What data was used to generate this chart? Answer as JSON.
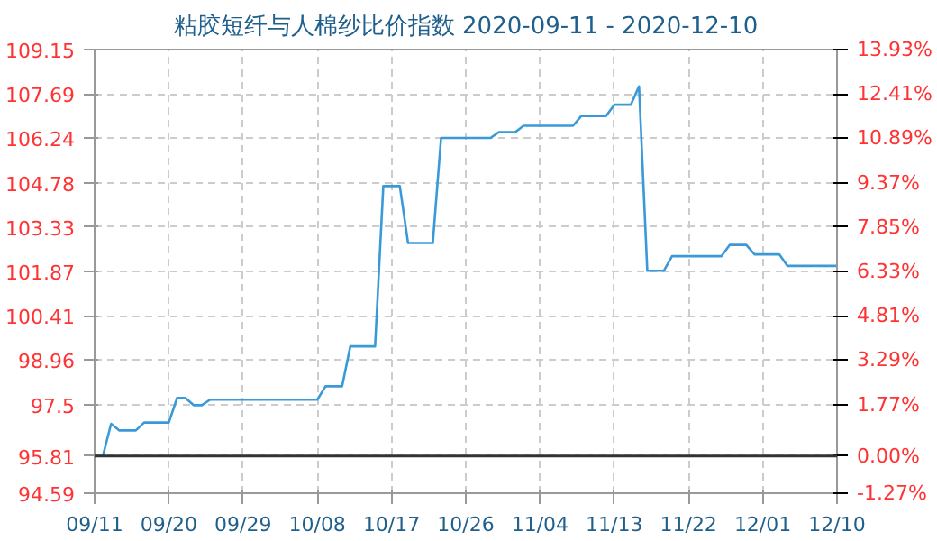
{
  "chart_data": {
    "type": "line",
    "title": "粘胶短纤与人棉纱比价指数 2020-09-11 - 2020-12-10",
    "x": [
      "2020-09-11",
      "2020-09-12",
      "2020-09-13",
      "2020-09-14",
      "2020-09-16",
      "2020-09-17",
      "2020-09-20",
      "2020-09-21",
      "2020-09-22",
      "2020-09-23",
      "2020-09-24",
      "2020-09-25",
      "2020-10-08",
      "2020-10-09",
      "2020-10-11",
      "2020-10-12",
      "2020-10-15",
      "2020-10-16",
      "2020-10-18",
      "2020-10-19",
      "2020-10-22",
      "2020-10-23",
      "2020-10-29",
      "2020-10-30",
      "2020-11-01",
      "2020-11-02",
      "2020-11-08",
      "2020-11-09",
      "2020-11-12",
      "2020-11-13",
      "2020-11-15",
      "2020-11-16",
      "2020-11-17",
      "2020-11-19",
      "2020-11-20",
      "2020-11-26",
      "2020-11-27",
      "2020-11-29",
      "2020-11-30",
      "2020-12-03",
      "2020-12-04",
      "2020-12-10"
    ],
    "series": [
      {
        "color": "#3a9ad9",
        "values": [
          95.81,
          95.81,
          96.87,
          96.65,
          96.65,
          96.91,
          96.91,
          97.72,
          97.72,
          97.48,
          97.48,
          97.66,
          97.66,
          98.1,
          98.1,
          99.41,
          99.41,
          104.67,
          104.67,
          102.8,
          102.8,
          106.25,
          106.25,
          106.44,
          106.44,
          106.65,
          106.65,
          106.97,
          106.97,
          107.34,
          107.34,
          107.94,
          101.89,
          101.89,
          102.37,
          102.37,
          102.74,
          102.74,
          102.43,
          102.43,
          102.05,
          102.05
        ]
      }
    ],
    "xlim": [
      "2020-09-11",
      "2020-12-10"
    ],
    "xticks": [
      {
        "value": "2020-09-11",
        "label": "09/11"
      },
      {
        "value": "2020-09-20",
        "label": "09/20"
      },
      {
        "value": "2020-09-29",
        "label": "09/29"
      },
      {
        "value": "2020-10-08",
        "label": "10/08"
      },
      {
        "value": "2020-10-17",
        "label": "10/17"
      },
      {
        "value": "2020-10-26",
        "label": "10/26"
      },
      {
        "value": "2020-11-04",
        "label": "11/04"
      },
      {
        "value": "2020-11-13",
        "label": "11/13"
      },
      {
        "value": "2020-11-22",
        "label": "11/22"
      },
      {
        "value": "2020-12-01",
        "label": "12/01"
      },
      {
        "value": "2020-12-10",
        "label": "12/10"
      }
    ],
    "ylim": [
      94.59,
      109.15
    ],
    "yticks": [
      94.59,
      95.81,
      97.5,
      98.96,
      100.41,
      101.87,
      103.33,
      104.78,
      106.24,
      107.69,
      109.15
    ],
    "y2lim": [
      -1.27,
      13.93
    ],
    "y2ticks": [
      {
        "value": -1.27,
        "label": "-1.27%"
      },
      {
        "value": 0,
        "label": "0.00%"
      },
      {
        "value": 1.77,
        "label": "1.77%"
      },
      {
        "value": 3.29,
        "label": "3.29%"
      },
      {
        "value": 4.81,
        "label": "4.81%"
      },
      {
        "value": 6.33,
        "label": "6.33%"
      },
      {
        "value": 7.85,
        "label": "7.85%"
      },
      {
        "value": 9.37,
        "label": "9.37%"
      },
      {
        "value": 10.89,
        "label": "10.89%"
      },
      {
        "value": 12.41,
        "label": "12.41%"
      },
      {
        "value": 13.93,
        "label": "13.93%"
      }
    ],
    "ref_lines": [
      {
        "axis": "y",
        "value": 95.81,
        "color": "#333333"
      }
    ],
    "grid": true,
    "marker": "none",
    "line_style": "solid"
  }
}
